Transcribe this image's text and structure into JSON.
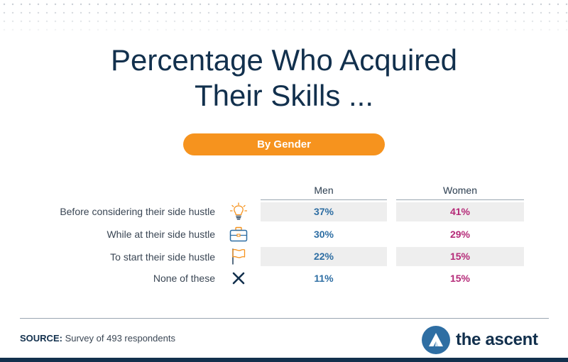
{
  "title_line1": "Percentage Who Acquired",
  "title_line2": "Their Skills ...",
  "subtitle": "By Gender",
  "source_label": "SOURCE:",
  "source_text": "Survey of 493 respondents",
  "logo_text": "the ascent",
  "colors": {
    "navy": "#12304d",
    "orange": "#f6931e",
    "men": "#2e6ea3",
    "women": "#b52a78",
    "row_shade": "#eeeeee"
  },
  "chart_data": {
    "type": "table",
    "columns": [
      "Men",
      "Women"
    ],
    "rows": [
      {
        "label": "Before considering their side hustle",
        "icon": "lightbulb-icon",
        "men": "37%",
        "women": "41%"
      },
      {
        "label": "While at their side hustle",
        "icon": "briefcase-icon",
        "men": "30%",
        "women": "29%"
      },
      {
        "label": "To start their side hustle",
        "icon": "flag-icon",
        "men": "22%",
        "women": "15%"
      },
      {
        "label": "None of these",
        "icon": "x-icon",
        "men": "11%",
        "women": "15%"
      }
    ]
  }
}
